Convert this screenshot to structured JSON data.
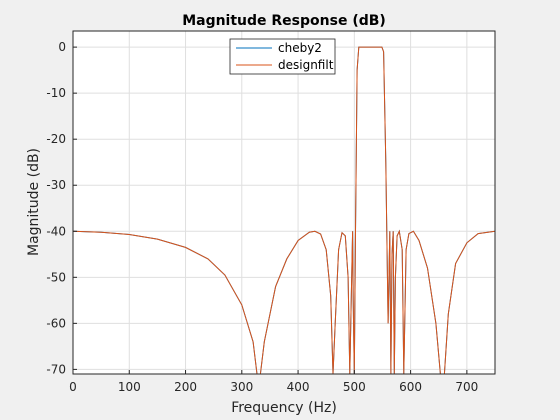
{
  "chart_data": {
    "type": "line",
    "title": "Magnitude Response (dB)",
    "xlabel": "Frequency (Hz)",
    "ylabel": "Magnitude (dB)",
    "xlim": [
      0,
      750
    ],
    "ylim": [
      -71,
      3.5
    ],
    "xticks": [
      0,
      100,
      200,
      300,
      400,
      500,
      600,
      700
    ],
    "yticks": [
      0,
      -10,
      -20,
      -30,
      -40,
      -50,
      -60,
      -70
    ],
    "grid": true,
    "legend_position": "top-center",
    "series": [
      {
        "name": "cheby2",
        "color": "#0072bd",
        "points": [
          [
            0,
            -40
          ],
          [
            50,
            -40.2
          ],
          [
            100,
            -40.7
          ],
          [
            150,
            -41.7
          ],
          [
            200,
            -43.5
          ],
          [
            240,
            -46
          ],
          [
            270,
            -49.5
          ],
          [
            300,
            -56
          ],
          [
            320,
            -64
          ],
          [
            327,
            -71
          ],
          [
            333,
            -71
          ],
          [
            340,
            -64
          ],
          [
            360,
            -52
          ],
          [
            380,
            -46
          ],
          [
            400,
            -42
          ],
          [
            420,
            -40.2
          ],
          [
            430,
            -40
          ],
          [
            440,
            -40.6
          ],
          [
            450,
            -44
          ],
          [
            458,
            -54
          ],
          [
            462,
            -71
          ],
          [
            466,
            -60
          ],
          [
            472,
            -44
          ],
          [
            478,
            -40.3
          ],
          [
            484,
            -41
          ],
          [
            489,
            -50
          ],
          [
            492,
            -71
          ],
          [
            495,
            -52
          ],
          [
            497,
            -40
          ],
          [
            498,
            -55
          ],
          [
            500,
            -71
          ],
          [
            502,
            -40
          ],
          [
            505,
            -5
          ],
          [
            508,
            0
          ],
          [
            515,
            0
          ],
          [
            535,
            0
          ],
          [
            549,
            0
          ],
          [
            552,
            -1
          ],
          [
            556,
            -25
          ],
          [
            560,
            -60
          ],
          [
            563,
            -40
          ],
          [
            565,
            -71
          ],
          [
            567,
            -45
          ],
          [
            569,
            -40
          ],
          [
            571,
            -71
          ],
          [
            573,
            -50
          ],
          [
            576,
            -41
          ],
          [
            580,
            -40
          ],
          [
            585,
            -44
          ],
          [
            588,
            -71
          ],
          [
            592,
            -44
          ],
          [
            597,
            -40.5
          ],
          [
            605,
            -40
          ],
          [
            615,
            -42
          ],
          [
            630,
            -48
          ],
          [
            645,
            -60
          ],
          [
            653,
            -71
          ],
          [
            660,
            -71
          ],
          [
            667,
            -58
          ],
          [
            680,
            -47
          ],
          [
            700,
            -42.5
          ],
          [
            720,
            -40.5
          ],
          [
            750,
            -40
          ]
        ]
      },
      {
        "name": "designfilt",
        "color": "#d95319",
        "points": [
          [
            0,
            -40
          ],
          [
            50,
            -40.2
          ],
          [
            100,
            -40.7
          ],
          [
            150,
            -41.7
          ],
          [
            200,
            -43.5
          ],
          [
            240,
            -46
          ],
          [
            270,
            -49.5
          ],
          [
            300,
            -56
          ],
          [
            320,
            -64
          ],
          [
            327,
            -71
          ],
          [
            333,
            -71
          ],
          [
            340,
            -64
          ],
          [
            360,
            -52
          ],
          [
            380,
            -46
          ],
          [
            400,
            -42
          ],
          [
            420,
            -40.2
          ],
          [
            430,
            -40
          ],
          [
            440,
            -40.6
          ],
          [
            450,
            -44
          ],
          [
            458,
            -54
          ],
          [
            462,
            -71
          ],
          [
            466,
            -60
          ],
          [
            472,
            -44
          ],
          [
            478,
            -40.3
          ],
          [
            484,
            -41
          ],
          [
            489,
            -50
          ],
          [
            492,
            -71
          ],
          [
            495,
            -52
          ],
          [
            497,
            -40
          ],
          [
            498,
            -55
          ],
          [
            500,
            -71
          ],
          [
            502,
            -40
          ],
          [
            505,
            -5
          ],
          [
            508,
            0
          ],
          [
            515,
            0
          ],
          [
            535,
            0
          ],
          [
            549,
            0
          ],
          [
            552,
            -1
          ],
          [
            556,
            -25
          ],
          [
            560,
            -60
          ],
          [
            563,
            -40
          ],
          [
            565,
            -71
          ],
          [
            567,
            -45
          ],
          [
            569,
            -40
          ],
          [
            571,
            -71
          ],
          [
            573,
            -50
          ],
          [
            576,
            -41
          ],
          [
            580,
            -40
          ],
          [
            585,
            -44
          ],
          [
            588,
            -71
          ],
          [
            592,
            -44
          ],
          [
            597,
            -40.5
          ],
          [
            605,
            -40
          ],
          [
            615,
            -42
          ],
          [
            630,
            -48
          ],
          [
            645,
            -60
          ],
          [
            653,
            -71
          ],
          [
            660,
            -71
          ],
          [
            667,
            -58
          ],
          [
            680,
            -47
          ],
          [
            700,
            -42.5
          ],
          [
            720,
            -40.5
          ],
          [
            750,
            -40
          ]
        ]
      }
    ]
  }
}
